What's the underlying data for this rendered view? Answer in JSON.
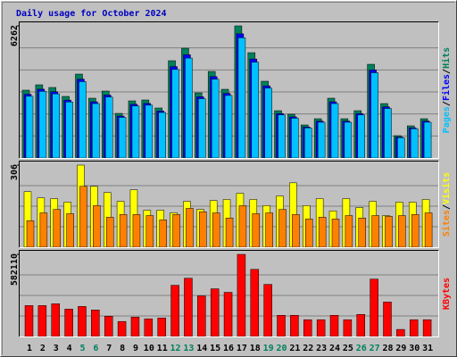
{
  "chart_data": {
    "type": "bar",
    "title": "Daily usage for October 2024",
    "categories": [
      1,
      2,
      3,
      4,
      5,
      6,
      7,
      8,
      9,
      10,
      11,
      12,
      13,
      14,
      15,
      16,
      17,
      18,
      19,
      20,
      21,
      22,
      23,
      24,
      25,
      26,
      27,
      28,
      29,
      30,
      31
    ],
    "category_colors": [
      "#000000",
      "#000000",
      "#000000",
      "#000000",
      "#00805c",
      "#00805c",
      "#000000",
      "#000000",
      "#000000",
      "#000000",
      "#000000",
      "#00805c",
      "#00805c",
      "#000000",
      "#000000",
      "#000000",
      "#000000",
      "#000000",
      "#00805c",
      "#00805c",
      "#000000",
      "#000000",
      "#000000",
      "#000000",
      "#000000",
      "#00805c",
      "#00805c",
      "#000000",
      "#000000",
      "#000000",
      "#000000"
    ],
    "legend_separator": "/",
    "panels": [
      {
        "ylim": [
          0,
          6262
        ],
        "yticks": [
          6262
        ],
        "grid_divisions": 6,
        "series": [
          {
            "name": "Hits",
            "color": "#00805c",
            "values": [
              3215,
              3469,
              3342,
              2919,
              3977,
              2834,
              3173,
              2115,
              2707,
              2750,
              2369,
              4611,
              5203,
              3088,
              4103,
              3257,
              6262,
              4992,
              3638,
              2242,
              2073,
              1565,
              1861,
              2834,
              1861,
              2242,
              4442,
              2580,
              1058,
              1523,
              1861
            ]
          },
          {
            "name": "Files",
            "color": "#0000ff",
            "values": [
              3022,
              3261,
              3141,
              2744,
              3738,
              2664,
              2983,
              1988,
              2545,
              2585,
              2227,
              4334,
              4891,
              2903,
              3857,
              3062,
              5886,
              4692,
              3420,
              2107,
              1949,
              1471,
              1749,
              2664,
              1749,
              2107,
              4175,
              2425,
              995,
              1432,
              1749
            ]
          },
          {
            "name": "Pages",
            "color": "#00c0ff",
            "values": [
              2926,
              3157,
              3041,
              2656,
              3619,
              2579,
              2887,
              1925,
              2463,
              2503,
              2156,
              4196,
              4735,
              2810,
              3734,
              2964,
              5698,
              4543,
              3311,
              2040,
              1886,
              1424,
              1694,
              2579,
              1694,
              2040,
              4042,
              2348,
              963,
              1386,
              1694
            ]
          }
        ]
      },
      {
        "ylim": [
          0,
          306
        ],
        "yticks": [
          306
        ],
        "grid_divisions": 4,
        "series": [
          {
            "name": "Visits",
            "color": "#ffff00",
            "values": [
              207,
              184,
              181,
              168,
              306,
              227,
              204,
              171,
              214,
              138,
              138,
              128,
              171,
              141,
              174,
              178,
              201,
              178,
              155,
              191,
              240,
              155,
              181,
              135,
              181,
              148,
              171,
              118,
              168,
              168,
              178
            ]
          },
          {
            "name": "Sites",
            "color": "#ff8000",
            "values": [
              99,
              128,
              141,
              125,
              227,
              155,
              112,
              122,
              122,
              118,
              102,
              122,
              145,
              132,
              128,
              109,
              155,
              125,
              128,
              141,
              122,
              105,
              112,
              105,
              118,
              109,
              118,
              115,
              118,
              122,
              128
            ]
          }
        ]
      },
      {
        "ylim": [
          0,
          582110
        ],
        "yticks": [
          582110
        ],
        "grid_divisions": 4,
        "series": [
          {
            "name": "KBytes",
            "color": "#ff0000",
            "values": [
              219065,
              219065,
              231583,
              194029,
              212806,
              187770,
              143957,
              106403,
              137698,
              125180,
              131439,
              363022,
              413094,
              287914,
              337986,
              312950,
              582110,
              475684,
              369281,
              150216,
              150216,
              118921,
              118921,
              150216,
              118921,
              156475,
              406835,
              244101,
              50072,
              118921,
              118921
            ]
          }
        ]
      }
    ]
  }
}
